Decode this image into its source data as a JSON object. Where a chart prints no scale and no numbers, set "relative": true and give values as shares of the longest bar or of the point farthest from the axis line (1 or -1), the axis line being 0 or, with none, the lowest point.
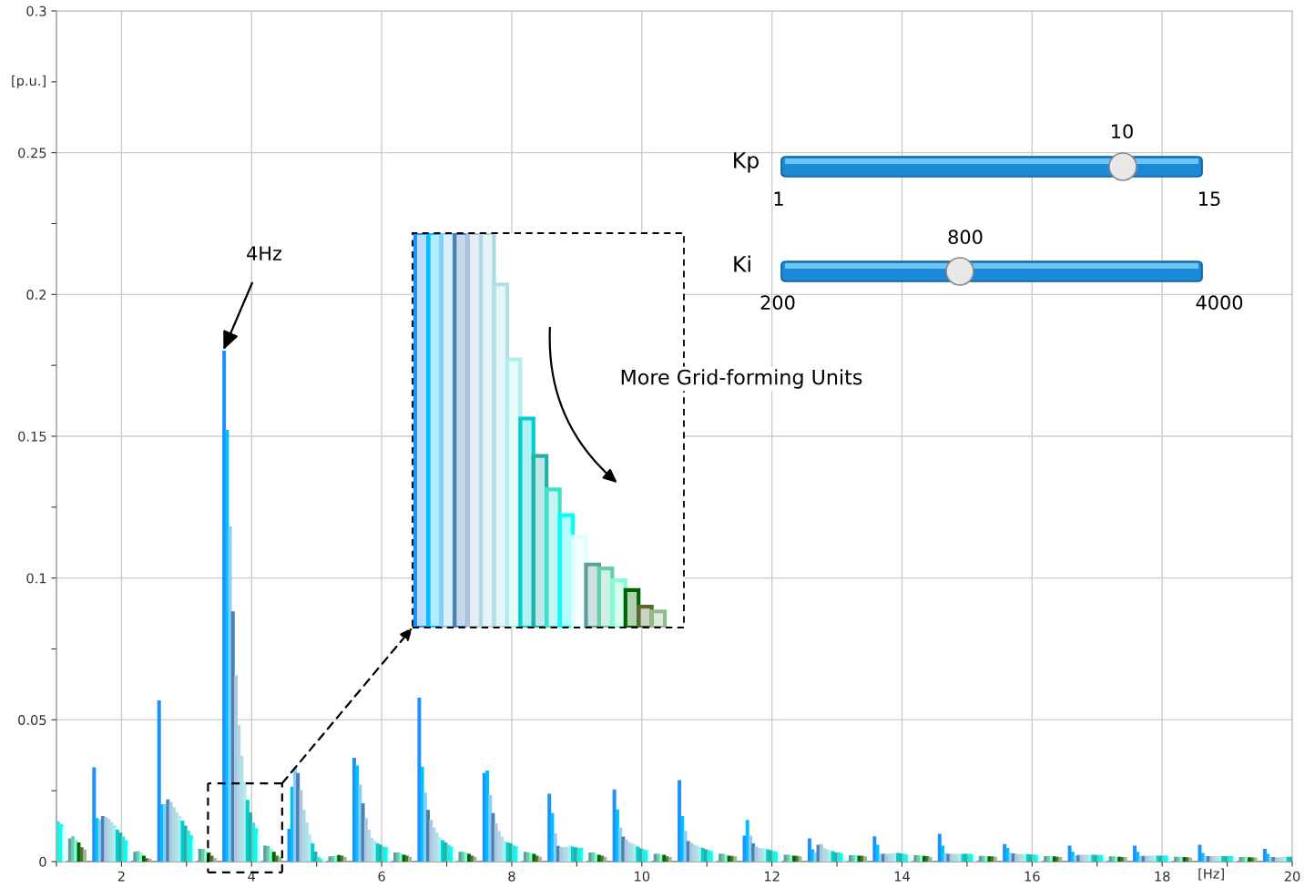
{
  "chart_data": [
    {
      "type": "bar",
      "xlabel": "[Hz]",
      "ylabel": "[p.u.]",
      "xlim": [
        1,
        20
      ],
      "ylim": [
        0,
        0.3
      ],
      "xticks": [
        {
          "value": 1,
          "label": null
        },
        2,
        {
          "value": 3,
          "label": null
        },
        4,
        {
          "value": 5,
          "label": null
        },
        6,
        {
          "value": 7,
          "label": null
        },
        8,
        {
          "value": 9,
          "label": null
        },
        10,
        {
          "value": 11,
          "label": null
        },
        12,
        {
          "value": 13,
          "label": null
        },
        14,
        {
          "value": 15,
          "label": null
        },
        16,
        {
          "value": 17,
          "label": null
        },
        18,
        {
          "value": 19,
          "label": null
        },
        20
      ],
      "yticks": [
        0,
        {
          "value": 0.025,
          "label": null
        },
        0.05,
        {
          "value": 0.075,
          "label": null
        },
        0.1,
        {
          "value": 0.125,
          "label": null
        },
        0.15,
        {
          "value": 0.175,
          "label": null
        },
        0.2,
        {
          "value": 0.225,
          "label": null
        },
        0.25,
        {
          "value": 0.275,
          "label": null
        },
        0.3
      ],
      "grid": true,
      "annotations": [
        {
          "text": "4Hz",
          "x": 3.56,
          "y": 0.18
        },
        "More Grid-forming Units",
        "Kp",
        "10",
        "1",
        "15",
        "Ki",
        "800",
        "200",
        "4000"
      ],
      "series": [
        {
          "color": "#1e90ff",
          "x": [
            1.56,
            2.56,
            3.56,
            4.56,
            5.56,
            6.56,
            7.56,
            8.56,
            9.56,
            10.56,
            11.56,
            12.56,
            13.56,
            14.56,
            15.56,
            16.56,
            17.56,
            18.56,
            19.56
          ],
          "values": [
            0.033,
            0.0566,
            0.18,
            0.0113,
            0.0364,
            0.0576,
            0.031,
            0.0237,
            0.0252,
            0.0285,
            0.0089,
            0.008,
            0.0087,
            0.0096,
            0.006,
            0.0054,
            0.0054,
            0.0057,
            0.0043
          ]
        },
        {
          "color": "#00bfff",
          "x": [
            1.605,
            2.605,
            3.605,
            4.605,
            5.605,
            6.605,
            7.605,
            8.605,
            9.605,
            10.605,
            11.605,
            12.605,
            13.605,
            14.605,
            15.605,
            16.605,
            17.605,
            18.605,
            19.605
          ],
          "values": [
            0.0151,
            0.02,
            0.152,
            0.0262,
            0.0337,
            0.0333,
            0.0319,
            0.0169,
            0.0182,
            0.0158,
            0.0145,
            0.0041,
            0.0057,
            0.0054,
            0.0046,
            0.0032,
            0.0032,
            0.0028,
            0.0025
          ]
        },
        {
          "color": "#87cefa",
          "x": [
            1.65,
            2.65,
            3.65,
            4.65,
            5.65,
            6.65,
            7.65,
            8.65,
            9.65,
            10.65,
            11.65,
            12.65,
            13.65,
            14.65,
            15.65,
            16.65,
            17.65,
            18.65,
            19.65
          ],
          "values": [
            0.0145,
            0.02,
            0.118,
            0.0327,
            0.0269,
            0.0241,
            0.0233,
            0.0097,
            0.0118,
            0.0105,
            0.0089,
            0.003,
            0.0025,
            0.0028,
            0.0028,
            0.0019,
            0.0018,
            0.0017,
            0.0014
          ]
        },
        {
          "color": "#4682b4",
          "x": [
            1.695,
            2.695,
            3.695,
            4.695,
            5.695,
            6.695,
            7.695,
            8.695,
            9.695,
            10.695,
            11.695,
            12.695,
            13.695,
            14.695,
            15.695,
            16.695,
            17.695,
            18.695,
            19.695
          ],
          "values": [
            0.0158,
            0.0217,
            0.088,
            0.031,
            0.0203,
            0.018,
            0.0169,
            0.0053,
            0.0086,
            0.007,
            0.0062,
            0.0057,
            0.0025,
            0.0025,
            0.0027,
            0.0021,
            0.0018,
            0.0017,
            0.0014
          ]
        },
        {
          "color": "#b0c4de",
          "x": [
            1.74,
            2.74,
            3.74,
            4.74,
            5.74,
            6.74,
            7.74,
            8.74,
            9.74,
            10.74,
            11.74,
            12.74,
            13.74,
            14.74,
            15.74,
            16.74,
            17.74,
            18.74,
            19.74
          ],
          "values": [
            0.0155,
            0.0207,
            0.0655,
            0.025,
            0.0151,
            0.0145,
            0.0132,
            0.0049,
            0.0076,
            0.0064,
            0.0051,
            0.006,
            0.0025,
            0.0025,
            0.0025,
            0.0022,
            0.0018,
            0.0017,
            0.0013
          ]
        },
        {
          "color": "#add8e6",
          "x": [
            1.785,
            2.785,
            3.785,
            4.785,
            5.785,
            6.785,
            7.785,
            8.785,
            9.785,
            10.785,
            11.785,
            12.785,
            13.785,
            14.785,
            15.785,
            16.785,
            17.785,
            18.785,
            19.785
          ],
          "values": [
            0.0148,
            0.019,
            0.048,
            0.018,
            0.011,
            0.0118,
            0.0105,
            0.0049,
            0.0067,
            0.0057,
            0.0046,
            0.0046,
            0.0025,
            0.0025,
            0.0024,
            0.0022,
            0.0019,
            0.0017,
            0.0013
          ]
        },
        {
          "color": "#b0e0e6",
          "x": [
            1.83,
            2.83,
            3.83,
            4.83,
            5.83,
            6.83,
            7.83,
            8.83,
            9.83,
            10.83,
            11.83,
            12.83,
            13.83,
            14.83,
            15.83,
            16.83,
            17.83,
            18.83,
            19.83
          ],
          "values": [
            0.0137,
            0.0171,
            0.037,
            0.0137,
            0.0082,
            0.01,
            0.0086,
            0.0051,
            0.0062,
            0.0054,
            0.0045,
            0.0041,
            0.0027,
            0.0025,
            0.0024,
            0.0022,
            0.0019,
            0.0017,
            0.0015
          ]
        },
        {
          "color": "#afeeee",
          "x": [
            1.875,
            2.875,
            3.875,
            4.875,
            5.875,
            6.875,
            7.875,
            8.875,
            9.875,
            10.875,
            11.875,
            12.875,
            13.875,
            14.875,
            15.875,
            16.875,
            17.875,
            18.875,
            19.875
          ],
          "values": [
            0.0126,
            0.0158,
            0.028,
            0.0094,
            0.0071,
            0.0084,
            0.0071,
            0.0055,
            0.0057,
            0.0049,
            0.0044,
            0.0038,
            0.0028,
            0.0025,
            0.0024,
            0.0022,
            0.0019,
            0.0017,
            0.0015
          ]
        },
        {
          "color": "#00ced1",
          "x": [
            1.92,
            2.92,
            3.92,
            4.92,
            5.92,
            6.92,
            7.92,
            8.92,
            9.92,
            10.92,
            11.92,
            12.92,
            13.92,
            14.92,
            15.92,
            16.92,
            17.92,
            18.92,
            19.92
          ],
          "values": [
            0.011,
            0.0142,
            0.0215,
            0.0062,
            0.0062,
            0.0073,
            0.0065,
            0.0051,
            0.0051,
            0.0046,
            0.0041,
            0.0035,
            0.0028,
            0.0025,
            0.0024,
            0.0022,
            0.0019,
            0.0017,
            0.0015
          ]
        },
        {
          "color": "#20b2aa",
          "x": [
            1.965,
            2.965,
            3.965,
            4.965,
            5.965,
            6.965,
            7.965,
            8.965,
            9.965,
            10.965,
            11.965,
            12.965,
            13.965,
            14.965,
            15.965,
            16.965,
            17.965,
            18.965,
            19.965
          ],
          "values": [
            0.01,
            0.0125,
            0.0171,
            0.0033,
            0.0057,
            0.0065,
            0.0062,
            0.0048,
            0.0044,
            0.0041,
            0.0038,
            0.003,
            0.0027,
            0.0025,
            0.0023,
            0.0021,
            0.0019,
            0.0017,
            0.0015
          ]
        },
        {
          "color": "#40e0d0",
          "x": [
            1.01,
            2.01,
            3.01,
            4.01,
            5.01,
            6.01,
            7.01,
            8.01,
            9.01,
            10.01,
            11.01,
            12.01,
            13.01,
            14.01,
            15.01,
            16.01,
            17.01,
            18.01,
            19.01
          ],
          "values": [
            0.014,
            0.0086,
            0.0107,
            0.0136,
            0.0014,
            0.0051,
            0.0057,
            0.0055,
            0.0046,
            0.0041,
            0.0038,
            0.0035,
            0.003,
            0.0025,
            0.0025,
            0.0023,
            0.0021,
            0.0019,
            0.0017
          ]
        },
        {
          "color": "#00ffff",
          "x": [
            1.055,
            2.055,
            3.055,
            4.055,
            5.055,
            6.055,
            7.055,
            8.055,
            9.055,
            10.055,
            11.055,
            12.055,
            13.055,
            14.055,
            15.055,
            16.055,
            17.055,
            18.055,
            19.055
          ],
          "values": [
            0.013,
            0.0073,
            0.0091,
            0.0116,
            0.0008,
            0.0048,
            0.0051,
            0.0051,
            0.0046,
            0.0038,
            0.0035,
            0.0032,
            0.0027,
            0.0023,
            0.0024,
            0.0022,
            0.0021,
            0.0019,
            0.0017
          ]
        },
        {
          "color": "#e0ffff",
          "x": [
            1.1,
            2.1,
            3.1,
            4.1,
            5.1,
            6.1,
            7.1,
            8.1,
            9.1,
            10.1,
            11.1,
            12.1,
            13.1,
            14.1,
            15.1,
            16.1,
            17.1,
            18.1,
            19.1
          ],
          "values": [
            0.012,
            0.0062,
            0.0075,
            0.0094,
            0.0008,
            0.0041,
            0.0046,
            0.0046,
            0.0039,
            0.0035,
            0.0032,
            0.003,
            0.0025,
            0.0022,
            0.0023,
            0.0022,
            0.0021,
            0.0018,
            0.0017
          ]
        },
        {
          "color": "#5f9ea0",
          "x": [
            1.19,
            2.19,
            3.19,
            4.19,
            5.19,
            6.19,
            7.19,
            8.19,
            9.19,
            10.19,
            11.19,
            12.19,
            13.19,
            14.19,
            15.19,
            16.19,
            17.19,
            18.19,
            19.19
          ],
          "values": [
            0.008,
            0.0032,
            0.0043,
            0.0054,
            0.0016,
            0.003,
            0.0032,
            0.0032,
            0.003,
            0.0025,
            0.0025,
            0.0022,
            0.002,
            0.002,
            0.0018,
            0.0017,
            0.0016,
            0.0015,
            0.0014
          ]
        },
        {
          "color": "#66cdaa",
          "x": [
            1.235,
            2.235,
            3.235,
            4.235,
            5.235,
            6.235,
            7.235,
            8.235,
            9.235,
            10.235,
            11.235,
            12.235,
            13.235,
            14.235,
            15.235,
            16.235,
            17.235,
            18.235,
            19.235
          ],
          "values": [
            0.0087,
            0.0035,
            0.0043,
            0.0052,
            0.0017,
            0.003,
            0.0032,
            0.003,
            0.003,
            0.0025,
            0.0025,
            0.0022,
            0.002,
            0.002,
            0.0018,
            0.0017,
            0.0016,
            0.0015,
            0.0014
          ]
        },
        {
          "color": "#7fffd4",
          "x": [
            1.28,
            2.28,
            3.28,
            4.28,
            5.28,
            6.28,
            7.28,
            8.28,
            9.28,
            10.28,
            11.28,
            12.28,
            13.28,
            14.28,
            15.28,
            16.28,
            17.28,
            18.28,
            19.28
          ],
          "values": [
            0.0075,
            0.003,
            0.0035,
            0.0043,
            0.0019,
            0.0027,
            0.003,
            0.0028,
            0.0025,
            0.0022,
            0.0022,
            0.002,
            0.002,
            0.0019,
            0.0017,
            0.0016,
            0.0015,
            0.0014,
            0.0013
          ]
        },
        {
          "color": "#006400",
          "x": [
            1.325,
            2.325,
            3.325,
            4.325,
            5.325,
            6.325,
            7.325,
            8.325,
            9.325,
            10.325,
            11.325,
            12.325,
            13.325,
            14.325,
            15.325,
            16.325,
            17.325,
            18.325,
            19.325
          ],
          "values": [
            0.0065,
            0.0019,
            0.003,
            0.0032,
            0.0021,
            0.0022,
            0.0025,
            0.0025,
            0.0022,
            0.0022,
            0.0019,
            0.0019,
            0.0019,
            0.0018,
            0.0016,
            0.0016,
            0.0015,
            0.0014,
            0.0013
          ]
        },
        {
          "color": "#556b2f",
          "x": [
            1.37,
            2.37,
            3.37,
            4.37,
            5.37,
            6.37,
            7.37,
            8.37,
            9.37,
            10.37,
            11.37,
            12.37,
            13.37,
            14.37,
            15.37,
            16.37,
            17.37,
            18.37,
            19.37
          ],
          "values": [
            0.0048,
            0.001,
            0.0019,
            0.0019,
            0.0019,
            0.0019,
            0.0019,
            0.0019,
            0.0019,
            0.0016,
            0.0018,
            0.0018,
            0.0018,
            0.0017,
            0.0016,
            0.0015,
            0.0014,
            0.0013,
            0.0012
          ]
        },
        {
          "color": "#8fbc8f",
          "x": [
            1.415,
            2.415,
            3.415,
            4.415,
            5.415,
            6.415,
            7.415,
            8.415,
            9.415,
            10.415,
            11.415,
            12.415,
            13.415,
            14.415,
            15.415,
            16.415,
            17.415,
            18.415,
            19.415
          ],
          "values": [
            0.004,
            0.0008,
            0.0011,
            0.0014,
            0.0014,
            0.0015,
            0.0015,
            0.0015,
            0.0015,
            0.0014,
            0.0016,
            0.0016,
            0.0016,
            0.0015,
            0.0015,
            0.0014,
            0.0013,
            0.0012,
            0.0012
          ]
        }
      ]
    },
    {
      "type": "bar",
      "relative": true,
      "categories": [
        null,
        null,
        null,
        null,
        null,
        null,
        null,
        null,
        null,
        null,
        null,
        null,
        null,
        null,
        null,
        null,
        null,
        null,
        null
      ],
      "values": [
        1,
        1,
        1,
        1,
        1,
        1,
        0.87,
        0.68,
        0.53,
        0.435,
        0.35,
        0.285,
        0.23,
        0.16,
        0.15,
        0.12,
        0.095,
        0.053,
        0.041
      ],
      "colors": [
        "#1e90ff",
        "#00bfff",
        "#87cefa",
        "#4682b4",
        "#b0c4de",
        "#add8e6",
        "#b0e0e6",
        "#afeeee",
        "#00ced1",
        "#20b2aa",
        "#40e0d0",
        "#00ffff",
        "#e0ffff",
        "#5f9ea0",
        "#66cdaa",
        "#7fffd4",
        "#006400",
        "#556b2f",
        "#8fbc8f"
      ]
    }
  ]
}
